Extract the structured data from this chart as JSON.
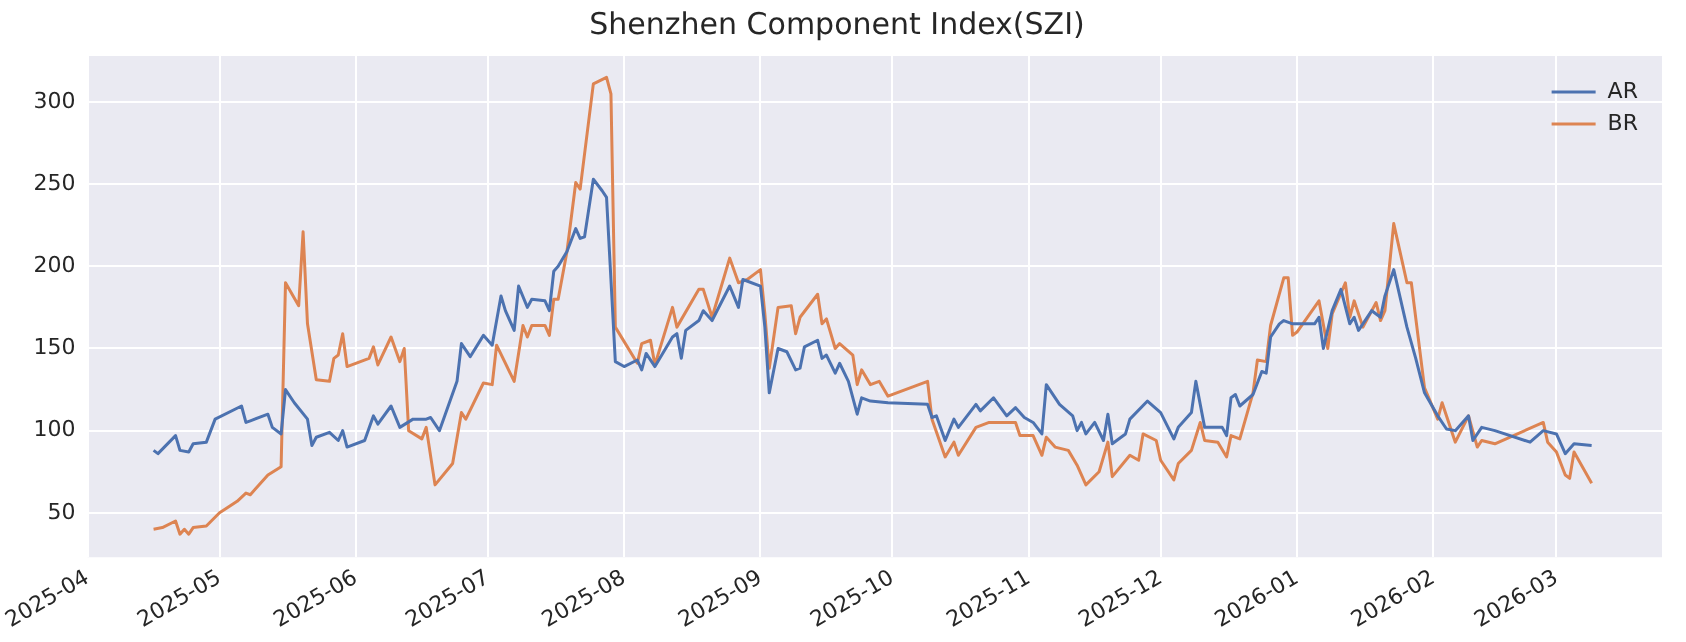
{
  "chart_data": {
    "type": "line",
    "title": "Shenzhen Component Index(SZI)",
    "xlim": [
      "2025-04-01",
      "2026-03-25"
    ],
    "xticks": [
      "2025-04",
      "2025-05",
      "2025-06",
      "2025-07",
      "2025-08",
      "2025-09",
      "2025-10",
      "2025-11",
      "2025-12",
      "2026-01",
      "2026-02",
      "2026-03"
    ],
    "ylim": [
      23,
      328
    ],
    "yticks": [
      50,
      100,
      150,
      200,
      250,
      300
    ],
    "grid": true,
    "legend": "top right",
    "marker": "none",
    "line_style": "solid",
    "series": [
      {
        "name": "AR",
        "color": "#4c72b0",
        "x": [
          "2025-04-16",
          "2025-04-17",
          "2025-04-21",
          "2025-04-22",
          "2025-04-24",
          "2025-04-25",
          "2025-04-28",
          "2025-04-30",
          "2025-05-06",
          "2025-05-07",
          "2025-05-08",
          "2025-05-12",
          "2025-05-13",
          "2025-05-15",
          "2025-05-16",
          "2025-05-18",
          "2025-05-21",
          "2025-05-22",
          "2025-05-23",
          "2025-05-26",
          "2025-05-28",
          "2025-05-29",
          "2025-05-30",
          "2025-06-03",
          "2025-06-05",
          "2025-06-06",
          "2025-06-09",
          "2025-06-11",
          "2025-06-14",
          "2025-06-17",
          "2025-06-18",
          "2025-06-20",
          "2025-06-24",
          "2025-06-25",
          "2025-06-27",
          "2025-06-30",
          "2025-07-02",
          "2025-07-04",
          "2025-07-05",
          "2025-07-07",
          "2025-07-08",
          "2025-07-10",
          "2025-07-11",
          "2025-07-14",
          "2025-07-15",
          "2025-07-16",
          "2025-07-17",
          "2025-07-19",
          "2025-07-21",
          "2025-07-22",
          "2025-07-23",
          "2025-07-25",
          "2025-07-27",
          "2025-07-28",
          "2025-07-30",
          "2025-08-01",
          "2025-08-04",
          "2025-08-05",
          "2025-08-06",
          "2025-08-08",
          "2025-08-12",
          "2025-08-13",
          "2025-08-14",
          "2025-08-15",
          "2025-08-18",
          "2025-08-19",
          "2025-08-21",
          "2025-08-25",
          "2025-08-27",
          "2025-08-28",
          "2025-09-01",
          "2025-09-02",
          "2025-09-03",
          "2025-09-05",
          "2025-09-07",
          "2025-09-09",
          "2025-09-10",
          "2025-09-11",
          "2025-09-14",
          "2025-09-15",
          "2025-09-16",
          "2025-09-18",
          "2025-09-19",
          "2025-09-21",
          "2025-09-23",
          "2025-09-24",
          "2025-09-26",
          "2025-09-30",
          "2025-10-09",
          "2025-10-10",
          "2025-10-11",
          "2025-10-13",
          "2025-10-15",
          "2025-10-16",
          "2025-10-20",
          "2025-10-21",
          "2025-10-24",
          "2025-10-27",
          "2025-10-29",
          "2025-10-31",
          "2025-11-02",
          "2025-11-04",
          "2025-11-05",
          "2025-11-08",
          "2025-11-11",
          "2025-11-12",
          "2025-11-13",
          "2025-11-14",
          "2025-11-16",
          "2025-11-18",
          "2025-11-19",
          "2025-11-20",
          "2025-11-23",
          "2025-11-24",
          "2025-11-28",
          "2025-12-01",
          "2025-12-04",
          "2025-12-05",
          "2025-12-08",
          "2025-12-09",
          "2025-12-11",
          "2025-12-15",
          "2025-12-16",
          "2025-12-17",
          "2025-12-18",
          "2025-12-19",
          "2025-12-22",
          "2025-12-24",
          "2025-12-25",
          "2025-12-26",
          "2025-12-28",
          "2025-12-29",
          "2025-12-31",
          "2026-01-01",
          "2026-01-05",
          "2026-01-06",
          "2026-01-07",
          "2026-01-09",
          "2026-01-11",
          "2026-01-13",
          "2026-01-14",
          "2026-01-15",
          "2026-01-18",
          "2026-01-20",
          "2026-01-21",
          "2026-01-23",
          "2026-01-26",
          "2026-01-28",
          "2026-01-30",
          "2026-02-02",
          "2026-02-04",
          "2026-02-06",
          "2026-02-09",
          "2026-02-10",
          "2026-02-12",
          "2026-02-15",
          "2026-02-23",
          "2026-02-26",
          "2026-03-01",
          "2026-03-03",
          "2026-03-05",
          "2026-03-09"
        ],
        "values": [
          88,
          86,
          97,
          88,
          87,
          92,
          93,
          107,
          115,
          105,
          106,
          110,
          102,
          98,
          125,
          117,
          107,
          91,
          96,
          99,
          94,
          100,
          90,
          94,
          109,
          104,
          115,
          102,
          107,
          107,
          108,
          100,
          130,
          153,
          145,
          158,
          152,
          182,
          173,
          161,
          188,
          175,
          180,
          179,
          173,
          197,
          200,
          209,
          223,
          217,
          218,
          253,
          246,
          242,
          142,
          139,
          143,
          137,
          147,
          139,
          157,
          159,
          144,
          161,
          167,
          173,
          167,
          188,
          175,
          192,
          188,
          163,
          123,
          150,
          148,
          137,
          138,
          151,
          155,
          144,
          146,
          135,
          141,
          130,
          110,
          120,
          118,
          117,
          116,
          108,
          109,
          94,
          107,
          102,
          116,
          112,
          120,
          109,
          114,
          108,
          105,
          98,
          128,
          116,
          109,
          100,
          105,
          98,
          105,
          94,
          110,
          92,
          98,
          107,
          118,
          111,
          95,
          102,
          111,
          130,
          102,
          102,
          97,
          120,
          122,
          115,
          122,
          136,
          135,
          157,
          165,
          167,
          165,
          165,
          165,
          169,
          150,
          173,
          186,
          165,
          169,
          161,
          173,
          169,
          182,
          198,
          163,
          144,
          123,
          109,
          101,
          100,
          109,
          94,
          102,
          100,
          93,
          100,
          98,
          86,
          92,
          91
        ]
      },
      {
        "name": "BR",
        "color": "#dd8452",
        "x": [
          "2025-04-16",
          "2025-04-18",
          "2025-04-21",
          "2025-04-22",
          "2025-04-23",
          "2025-04-24",
          "2025-04-25",
          "2025-04-28",
          "2025-05-01",
          "2025-05-05",
          "2025-05-07",
          "2025-05-08",
          "2025-05-12",
          "2025-05-15",
          "2025-05-16",
          "2025-05-19",
          "2025-05-20",
          "2025-05-21",
          "2025-05-23",
          "2025-05-26",
          "2025-05-27",
          "2025-05-28",
          "2025-05-29",
          "2025-05-30",
          "2025-06-04",
          "2025-06-05",
          "2025-06-06",
          "2025-06-09",
          "2025-06-11",
          "2025-06-12",
          "2025-06-13",
          "2025-06-16",
          "2025-06-17",
          "2025-06-19",
          "2025-06-23",
          "2025-06-25",
          "2025-06-26",
          "2025-06-30",
          "2025-07-02",
          "2025-07-03",
          "2025-07-07",
          "2025-07-09",
          "2025-07-10",
          "2025-07-11",
          "2025-07-14",
          "2025-07-15",
          "2025-07-16",
          "2025-07-17",
          "2025-07-19",
          "2025-07-21",
          "2025-07-22",
          "2025-07-25",
          "2025-07-28",
          "2025-07-29",
          "2025-07-30",
          "2025-08-04",
          "2025-08-05",
          "2025-08-07",
          "2025-08-08",
          "2025-08-12",
          "2025-08-13",
          "2025-08-18",
          "2025-08-19",
          "2025-08-21",
          "2025-08-25",
          "2025-08-27",
          "2025-08-28",
          "2025-08-29",
          "2025-09-01",
          "2025-09-02",
          "2025-09-03",
          "2025-09-05",
          "2025-09-08",
          "2025-09-09",
          "2025-09-10",
          "2025-09-14",
          "2025-09-15",
          "2025-09-16",
          "2025-09-18",
          "2025-09-19",
          "2025-09-22",
          "2025-09-23",
          "2025-09-24",
          "2025-09-26",
          "2025-09-28",
          "2025-09-30",
          "2025-10-09",
          "2025-10-10",
          "2025-10-13",
          "2025-10-15",
          "2025-10-16",
          "2025-10-20",
          "2025-10-23",
          "2025-10-29",
          "2025-10-30",
          "2025-11-02",
          "2025-11-04",
          "2025-11-05",
          "2025-11-07",
          "2025-11-10",
          "2025-11-12",
          "2025-11-14",
          "2025-11-17",
          "2025-11-19",
          "2025-11-20",
          "2025-11-24",
          "2025-11-26",
          "2025-11-27",
          "2025-11-30",
          "2025-12-01",
          "2025-12-04",
          "2025-12-05",
          "2025-12-08",
          "2025-12-10",
          "2025-12-11",
          "2025-12-14",
          "2025-12-16",
          "2025-12-17",
          "2025-12-19",
          "2025-12-22",
          "2025-12-23",
          "2025-12-25",
          "2025-12-26",
          "2025-12-29",
          "2025-12-30",
          "2025-12-31",
          "2026-01-01",
          "2026-01-06",
          "2026-01-08",
          "2026-01-09",
          "2026-01-12",
          "2026-01-13",
          "2026-01-14",
          "2026-01-16",
          "2026-01-19",
          "2026-01-20",
          "2026-01-21",
          "2026-01-23",
          "2026-01-26",
          "2026-01-27",
          "2026-01-30",
          "2026-02-02",
          "2026-02-03",
          "2026-02-06",
          "2026-02-09",
          "2026-02-11",
          "2026-02-12",
          "2026-02-15",
          "2026-02-26",
          "2026-02-27",
          "2026-03-01",
          "2026-03-03",
          "2026-03-04",
          "2026-03-05",
          "2026-03-09"
        ],
        "values": [
          40,
          41,
          45,
          37,
          40,
          37,
          41,
          42,
          50,
          57,
          62,
          61,
          73,
          78,
          190,
          176,
          221,
          165,
          131,
          130,
          144,
          146,
          159,
          139,
          144,
          151,
          140,
          157,
          142,
          150,
          100,
          95,
          102,
          67,
          80,
          111,
          107,
          129,
          128,
          152,
          130,
          164,
          157,
          164,
          164,
          158,
          180,
          180,
          209,
          251,
          247,
          311,
          315,
          305,
          163,
          141,
          153,
          155,
          140,
          175,
          163,
          186,
          186,
          169,
          205,
          190,
          191,
          192,
          198,
          171,
          138,
          175,
          176,
          159,
          169,
          183,
          165,
          168,
          150,
          153,
          146,
          128,
          137,
          128,
          130,
          121,
          130,
          107,
          84,
          93,
          85,
          102,
          105,
          105,
          97,
          97,
          85,
          96,
          90,
          88,
          79,
          67,
          75,
          93,
          72,
          85,
          82,
          98,
          94,
          82,
          70,
          80,
          88,
          105,
          94,
          93,
          84,
          97,
          95,
          123,
          143,
          142,
          164,
          193,
          193,
          158,
          160,
          179,
          150,
          171,
          190,
          169,
          179,
          163,
          178,
          167,
          173,
          226,
          190,
          190,
          126,
          107,
          117,
          93,
          109,
          90,
          94,
          92,
          105,
          93,
          87,
          73,
          71,
          87,
          68
        ]
      }
    ]
  }
}
